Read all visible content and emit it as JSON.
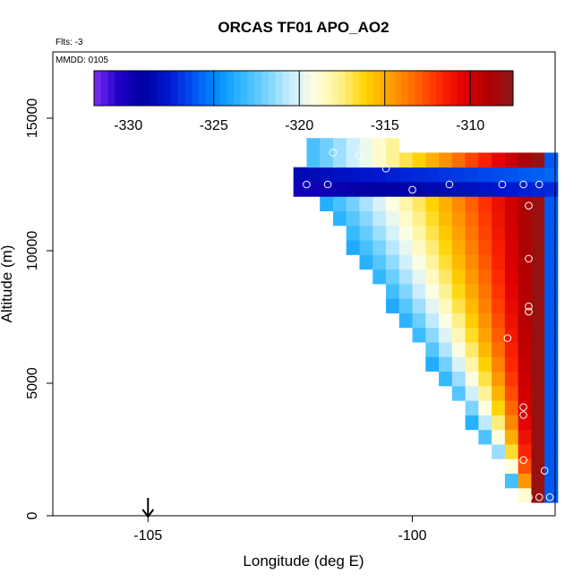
{
  "title": "ORCAS TF01 APO_AO2",
  "flts_text": "Flts: -3",
  "mmdd_text": "MMDD: 0105",
  "colors": {
    "scale": [
      "#7b2ff7",
      "#1e00c8",
      "#0000a0",
      "#0018d0",
      "#0050f0",
      "#0090ff",
      "#30b8ff",
      "#78d2ff",
      "#cceeff",
      "#ffffe0",
      "#fff08a",
      "#ffd400",
      "#ffa000",
      "#ff6a00",
      "#ff2a00",
      "#e00000",
      "#b00000",
      "#8b1a1a"
    ],
    "marker": "#ffffff"
  },
  "chart_data": {
    "type": "heatmap",
    "title": "ORCAS TF01 APO_AO2",
    "xlabel": "Longitude (deg E)",
    "ylabel": "Altitude (m)",
    "xlim": [
      -106.8,
      -97.3
    ],
    "ylim": [
      0,
      17500
    ],
    "x_ticks": [
      -105,
      -100
    ],
    "y_ticks": [
      0,
      5000,
      10000,
      15000
    ],
    "x_tick_labels": [
      "-105",
      "-100"
    ],
    "y_tick_labels": [
      "0",
      "5000",
      "10000",
      "15000"
    ],
    "colorbar": {
      "range": [
        -332,
        -307.5
      ],
      "ticks": [
        -330,
        -325,
        -320,
        -315,
        -310
      ],
      "tick_labels": [
        "-330",
        "-325",
        "-320",
        "-315",
        "-310"
      ],
      "position": "top"
    },
    "arrow_marker_lon": -105,
    "field_summary": {
      "top_band": {
        "alt_range": [
          12100,
          13000
        ],
        "value": -330
      },
      "east_wall": {
        "lon_range": [
          -97.7,
          -97.3
        ],
        "value": -326
      },
      "west_edge_value": -324,
      "interior_low_value": -320,
      "interior_high_value": -308
    },
    "observations": [
      {
        "lon": -101.5,
        "alt": 13700
      },
      {
        "lon": -101.0,
        "alt": 13600
      },
      {
        "lon": -100.5,
        "alt": 13100
      },
      {
        "lon": -102.0,
        "alt": 12500
      },
      {
        "lon": -101.6,
        "alt": 12500
      },
      {
        "lon": -100.0,
        "alt": 12300
      },
      {
        "lon": -99.3,
        "alt": 12500
      },
      {
        "lon": -98.3,
        "alt": 12500
      },
      {
        "lon": -97.9,
        "alt": 12500
      },
      {
        "lon": -97.6,
        "alt": 12500
      },
      {
        "lon": -97.8,
        "alt": 11700
      },
      {
        "lon": -97.8,
        "alt": 9700
      },
      {
        "lon": -97.8,
        "alt": 7900
      },
      {
        "lon": -97.8,
        "alt": 7700
      },
      {
        "lon": -98.2,
        "alt": 6700
      },
      {
        "lon": -97.9,
        "alt": 4100
      },
      {
        "lon": -97.9,
        "alt": 3800
      },
      {
        "lon": -97.9,
        "alt": 2100
      },
      {
        "lon": -97.5,
        "alt": 1700
      },
      {
        "lon": -97.8,
        "alt": 700
      },
      {
        "lon": -97.6,
        "alt": 700
      },
      {
        "lon": -97.4,
        "alt": 700
      }
    ]
  }
}
